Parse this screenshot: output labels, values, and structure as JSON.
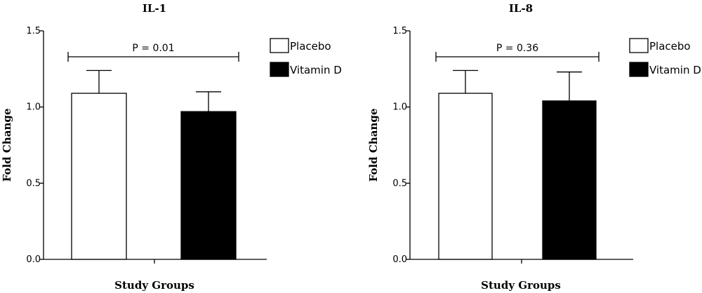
{
  "chart_data": [
    {
      "type": "bar",
      "title": "IL-1",
      "xlabel": "Study Groups",
      "ylabel": "Fold Change",
      "ylim": [
        0,
        1.5
      ],
      "yticks": [
        "0.0",
        "0.5",
        "1.0",
        "1.5"
      ],
      "grid": false,
      "legend_position": "top-right",
      "series": [
        {
          "name": "Placebo",
          "value": 1.09,
          "error": 0.15,
          "color": "#ffffff"
        },
        {
          "name": "Vitamin D",
          "value": 0.97,
          "error": 0.13,
          "color": "#000000"
        }
      ],
      "annotation": "P = 0.01"
    },
    {
      "type": "bar",
      "title": "IL-8",
      "xlabel": "Study Groups",
      "ylabel": "Fold Change",
      "ylim": [
        0,
        1.5
      ],
      "yticks": [
        "0.0",
        "0.5",
        "1.0",
        "1.5"
      ],
      "grid": false,
      "legend_position": "top-right",
      "series": [
        {
          "name": "Placebo",
          "value": 1.09,
          "error": 0.15,
          "color": "#ffffff"
        },
        {
          "name": "Vitamin D",
          "value": 1.04,
          "error": 0.19,
          "color": "#000000"
        }
      ],
      "annotation": "P = 0.36"
    }
  ]
}
